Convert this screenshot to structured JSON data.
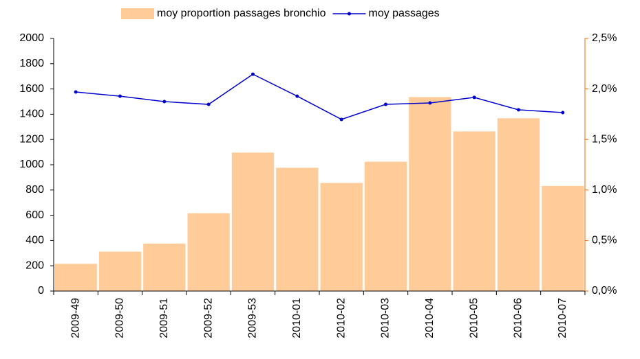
{
  "chart_data": {
    "type": "bar-line",
    "categories": [
      "2009-49",
      "2009-50",
      "2009-51",
      "2009-52",
      "2009-53",
      "2010-01",
      "2010-02",
      "2010-03",
      "2010-04",
      "2010-05",
      "2010-06",
      "2010-07"
    ],
    "series": [
      {
        "name": "moy proportion passages bronchio",
        "type": "bar",
        "color": "#ffcc99",
        "axis": "y2",
        "values": [
          0.27,
          0.39,
          0.47,
          0.77,
          1.37,
          1.22,
          1.07,
          1.28,
          1.92,
          1.58,
          1.71,
          1.04
        ]
      },
      {
        "name": "moy passages",
        "type": "line",
        "color": "#0000cc",
        "values": [
          1576,
          1543,
          1500,
          1478,
          1717,
          1543,
          1359,
          1478,
          1489,
          1533,
          1435,
          1413
        ]
      }
    ],
    "ylim": [
      0,
      2000
    ],
    "yticks": [
      0,
      200,
      400,
      600,
      800,
      1000,
      1200,
      1400,
      1600,
      1800,
      2000
    ],
    "y2lim": [
      0,
      2.5
    ],
    "y2ticks": [
      {
        "value": 0,
        "label": "0,0%"
      },
      {
        "value": 0.5,
        "label": "0,5%"
      },
      {
        "value": 1,
        "label": "1,0%"
      },
      {
        "value": 1.5,
        "label": "1,5%"
      },
      {
        "value": 2,
        "label": "2,0%"
      },
      {
        "value": 2.5,
        "label": "2,5%"
      }
    ],
    "y2color": "#ff6600",
    "grid": false,
    "legend": "top"
  }
}
